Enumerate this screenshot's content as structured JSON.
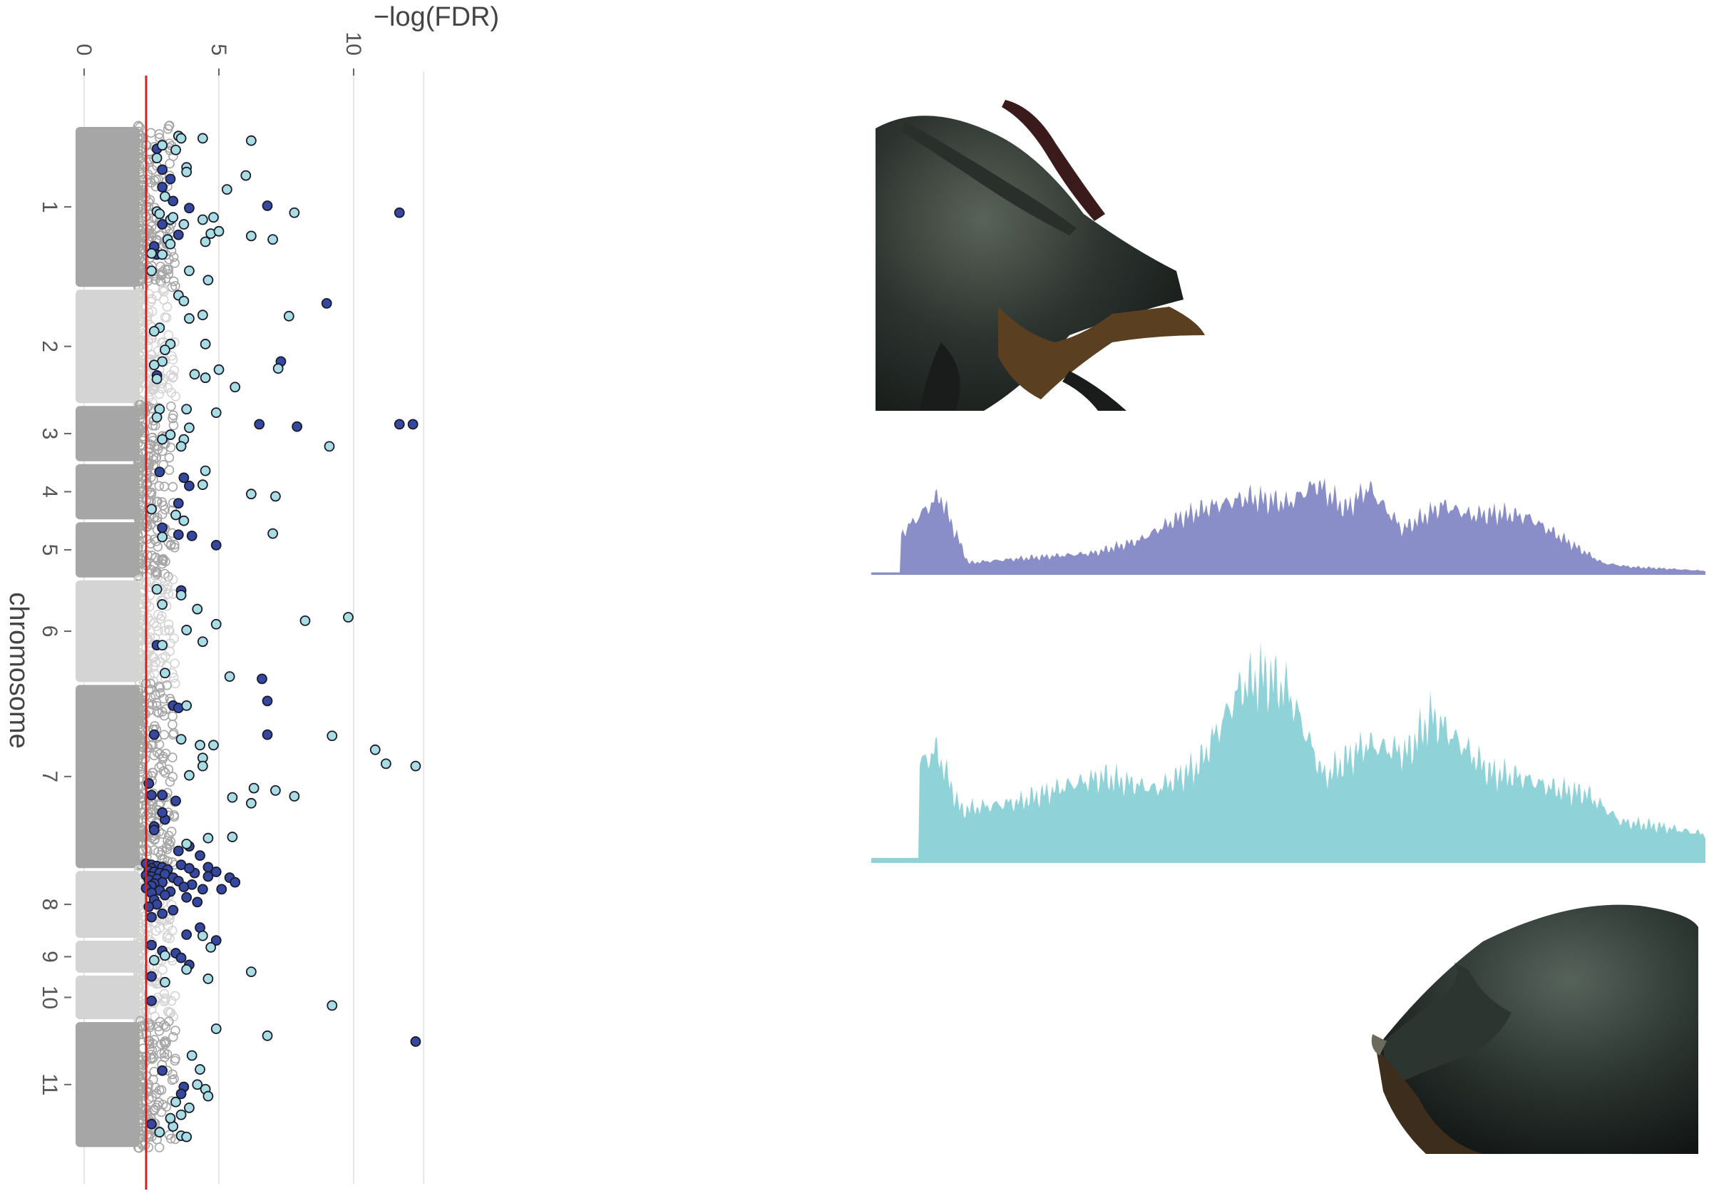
{
  "chart_data": {
    "type": "scatter",
    "orientation": "rotated-90",
    "ylabel": "−log(FDR)",
    "xlabel": "chromosome",
    "ylim": [
      0,
      12.6
    ],
    "yticks": [
      0,
      5,
      10
    ],
    "threshold": 2.3,
    "colors": {
      "threshold": "#d62020",
      "chrom_dark": "#a6a6a6",
      "chrom_light": "#d4d4d4",
      "sig_dark": "#3548a0",
      "sig_light": "#a8dde4",
      "track_top": "#8a8ec8",
      "track_bottom": "#8fd3d9"
    },
    "chromosomes": [
      {
        "label": "1",
        "start": 0,
        "end": 14,
        "shade": "dark"
      },
      {
        "label": "2",
        "start": 14,
        "end": 24,
        "shade": "light"
      },
      {
        "label": "3",
        "start": 24,
        "end": 29,
        "shade": "dark"
      },
      {
        "label": "4",
        "start": 29,
        "end": 34,
        "shade": "dark"
      },
      {
        "label": "5",
        "start": 34,
        "end": 39,
        "shade": "dark"
      },
      {
        "label": "6",
        "start": 39,
        "end": 48,
        "shade": "light"
      },
      {
        "label": "7",
        "start": 48,
        "end": 64,
        "shade": "dark"
      },
      {
        "label": "8",
        "start": 64,
        "end": 70,
        "shade": "light"
      },
      {
        "label": "9",
        "start": 70,
        "end": 73,
        "shade": "light"
      },
      {
        "label": "10",
        "start": 73,
        "end": 77,
        "shade": "light"
      },
      {
        "label": "11",
        "start": 77,
        "end": 88,
        "shade": "dark"
      }
    ],
    "series": [
      {
        "type": "dark",
        "points": [
          [
            7.5,
            11.7
          ],
          [
            15.3,
            9.0
          ],
          [
            25.7,
            11.7
          ],
          [
            25.7,
            12.2
          ],
          [
            6.9,
            6.8
          ],
          [
            20.3,
            7.3
          ],
          [
            25.7,
            6.5
          ],
          [
            25.9,
            7.9
          ],
          [
            47.6,
            6.6
          ],
          [
            49.5,
            6.8
          ],
          [
            52.4,
            6.8
          ],
          [
            5.3,
            2.9
          ],
          [
            6.5,
            3.3
          ],
          [
            7.1,
            3.9
          ],
          [
            9.4,
            3.5
          ],
          [
            10.4,
            2.6
          ],
          [
            11.1,
            2.7
          ],
          [
            2.0,
            2.7
          ],
          [
            3.8,
            2.9
          ],
          [
            4.6,
            3.2
          ],
          [
            8.5,
            2.9
          ],
          [
            21.5,
            2.7
          ],
          [
            29.8,
            2.8
          ],
          [
            30.3,
            3.7
          ],
          [
            31.0,
            3.9
          ],
          [
            32.5,
            3.5
          ],
          [
            34.6,
            2.9
          ],
          [
            35.2,
            3.5
          ],
          [
            35.3,
            4.0
          ],
          [
            36.1,
            4.9
          ],
          [
            40.0,
            3.6
          ],
          [
            44.7,
            2.7
          ],
          [
            49.9,
            3.3
          ],
          [
            50.1,
            3.5
          ],
          [
            52.4,
            2.6
          ],
          [
            57.6,
            2.9
          ],
          [
            58.1,
            3.4
          ],
          [
            59.7,
            3.0
          ],
          [
            60.3,
            2.6
          ],
          [
            62.0,
            3.9
          ],
          [
            62.4,
            3.5
          ],
          [
            62.8,
            4.3
          ],
          [
            56.6,
            2.4
          ],
          [
            57.6,
            2.5
          ],
          [
            59.1,
            2.9
          ],
          [
            60.6,
            2.6
          ],
          [
            63.5,
            2.3
          ],
          [
            63.6,
            2.5
          ],
          [
            63.7,
            2.7
          ],
          [
            63.8,
            2.9
          ],
          [
            63.9,
            2.5
          ],
          [
            64.0,
            3.1
          ],
          [
            64.1,
            2.4
          ],
          [
            64.2,
            2.6
          ],
          [
            64.3,
            2.8
          ],
          [
            64.4,
            3.0
          ],
          [
            64.5,
            2.3
          ],
          [
            64.6,
            2.5
          ],
          [
            64.7,
            3.3
          ],
          [
            64.8,
            2.7
          ],
          [
            64.9,
            2.4
          ],
          [
            65.0,
            3.5
          ],
          [
            65.1,
            2.9
          ],
          [
            65.2,
            2.6
          ],
          [
            65.3,
            4.0
          ],
          [
            65.4,
            2.5
          ],
          [
            65.5,
            3.7
          ],
          [
            65.6,
            2.3
          ],
          [
            65.7,
            4.4
          ],
          [
            65.8,
            2.8
          ],
          [
            65.9,
            3.2
          ],
          [
            66.0,
            2.5
          ],
          [
            66.2,
            3.0
          ],
          [
            66.4,
            3.8
          ],
          [
            66.6,
            2.6
          ],
          [
            66.8,
            4.2
          ],
          [
            67.0,
            2.7
          ],
          [
            67.2,
            2.4
          ],
          [
            67.5,
            3.3
          ],
          [
            67.8,
            2.9
          ],
          [
            68.1,
            2.5
          ],
          [
            63.8,
            4.6
          ],
          [
            64.2,
            4.9
          ],
          [
            64.7,
            5.4
          ],
          [
            65.1,
            5.6
          ],
          [
            65.7,
            5.1
          ],
          [
            64.3,
            4.1
          ],
          [
            64.6,
            4.6
          ],
          [
            63.6,
            3.6
          ],
          [
            63.9,
            3.9
          ],
          [
            69.0,
            4.3
          ],
          [
            69.6,
            3.8
          ],
          [
            70.1,
            4.9
          ],
          [
            70.5,
            2.5
          ],
          [
            71.0,
            2.9
          ],
          [
            71.2,
            3.4
          ],
          [
            71.6,
            3.6
          ],
          [
            72.2,
            3.9
          ],
          [
            73.2,
            2.5
          ],
          [
            75.3,
            2.5
          ],
          [
            78.8,
            12.3
          ],
          [
            81.3,
            2.9
          ],
          [
            82.7,
            3.7
          ],
          [
            83.3,
            3.6
          ],
          [
            85.9,
            2.5
          ]
        ]
      },
      {
        "type": "light",
        "points": [
          [
            1.3,
            6.2
          ],
          [
            1.1,
            4.4
          ],
          [
            2.1,
            3.4
          ],
          [
            0.9,
            3.5
          ],
          [
            1.1,
            3.6
          ],
          [
            1.7,
            2.9
          ],
          [
            2.8,
            2.7
          ],
          [
            3.6,
            3.8
          ],
          [
            4.0,
            3.8
          ],
          [
            4.3,
            6.0
          ],
          [
            5.5,
            5.3
          ],
          [
            6.1,
            3.0
          ],
          [
            7.4,
            2.7
          ],
          [
            7.6,
            2.8
          ],
          [
            8.1,
            3.2
          ],
          [
            8.5,
            3.7
          ],
          [
            8.1,
            4.4
          ],
          [
            7.9,
            4.8
          ],
          [
            7.9,
            3.3
          ],
          [
            7.5,
            7.8
          ],
          [
            9.3,
            4.7
          ],
          [
            9.5,
            6.2
          ],
          [
            9.8,
            7.0
          ],
          [
            9.8,
            3.1
          ],
          [
            10.2,
            3.2
          ],
          [
            9.1,
            5.0
          ],
          [
            10.0,
            4.5
          ],
          [
            11.1,
            2.9
          ],
          [
            11.0,
            2.5
          ],
          [
            12.5,
            2.5
          ],
          [
            12.5,
            3.9
          ],
          [
            13.3,
            4.6
          ],
          [
            14.6,
            3.5
          ],
          [
            15.1,
            3.7
          ],
          [
            16.6,
            3.9
          ],
          [
            16.3,
            4.4
          ],
          [
            16.4,
            7.6
          ],
          [
            17.4,
            2.8
          ],
          [
            17.7,
            2.6
          ],
          [
            18.8,
            4.5
          ],
          [
            18.8,
            3.2
          ],
          [
            19.3,
            3.0
          ],
          [
            20.3,
            2.9
          ],
          [
            20.6,
            2.6
          ],
          [
            20.9,
            7.2
          ],
          [
            21.4,
            4.1
          ],
          [
            21.0,
            5.0
          ],
          [
            21.7,
            4.5
          ],
          [
            21.8,
            2.7
          ],
          [
            22.5,
            5.6
          ],
          [
            24.4,
            3.8
          ],
          [
            24.4,
            2.8
          ],
          [
            24.7,
            4.9
          ],
          [
            25.1,
            2.7
          ],
          [
            26.0,
            3.9
          ],
          [
            26.6,
            3.2
          ],
          [
            27.0,
            2.9
          ],
          [
            27.0,
            3.7
          ],
          [
            27.6,
            9.1
          ],
          [
            27.6,
            3.6
          ],
          [
            29.7,
            4.5
          ],
          [
            30.9,
            4.4
          ],
          [
            31.7,
            6.2
          ],
          [
            31.9,
            7.1
          ],
          [
            33.0,
            2.5
          ],
          [
            33.5,
            3.4
          ],
          [
            35.1,
            7.0
          ],
          [
            34.0,
            3.7
          ],
          [
            35.4,
            2.9
          ],
          [
            39.9,
            2.7
          ],
          [
            40.4,
            3.6
          ],
          [
            41.2,
            2.9
          ],
          [
            41.6,
            4.2
          ],
          [
            42.6,
            8.2
          ],
          [
            42.3,
            9.8
          ],
          [
            42.9,
            4.9
          ],
          [
            43.4,
            3.8
          ],
          [
            44.4,
            4.4
          ],
          [
            44.7,
            2.9
          ],
          [
            47.4,
            5.4
          ],
          [
            47.1,
            3.0
          ],
          [
            49.9,
            3.8
          ],
          [
            52.5,
            9.2
          ],
          [
            52.8,
            3.6
          ],
          [
            53.7,
            10.8
          ],
          [
            53.3,
            4.8
          ],
          [
            53.3,
            4.3
          ],
          [
            54.4,
            4.4
          ],
          [
            55.1,
            12.3
          ],
          [
            54.9,
            11.2
          ],
          [
            55.1,
            4.4
          ],
          [
            55.9,
            3.9
          ],
          [
            57.0,
            6.3
          ],
          [
            57.2,
            7.1
          ],
          [
            57.7,
            7.8
          ],
          [
            57.8,
            5.5
          ],
          [
            58.3,
            6.2
          ],
          [
            61.2,
            5.5
          ],
          [
            61.8,
            3.8
          ],
          [
            61.3,
            4.6
          ],
          [
            69.7,
            4.4
          ],
          [
            70.7,
            4.7
          ],
          [
            71.4,
            3.0
          ],
          [
            71.8,
            2.6
          ],
          [
            72.6,
            3.8
          ],
          [
            72.8,
            6.2
          ],
          [
            73.7,
            3.0
          ],
          [
            73.4,
            4.6
          ],
          [
            75.7,
            9.2
          ],
          [
            77.7,
            4.9
          ],
          [
            78.3,
            6.8
          ],
          [
            80.0,
            4.0
          ],
          [
            81.2,
            4.3
          ],
          [
            82.5,
            4.2
          ],
          [
            82.9,
            4.5
          ],
          [
            83.5,
            4.6
          ],
          [
            84.0,
            3.4
          ],
          [
            84.5,
            3.9
          ],
          [
            85.1,
            3.6
          ],
          [
            86.1,
            3.3
          ],
          [
            86.9,
            3.6
          ],
          [
            87.0,
            3.8
          ],
          [
            85.4,
            3.2
          ],
          [
            86.6,
            2.8
          ]
        ]
      }
    ],
    "tracks": [
      {
        "name": "top",
        "color": "#8a8ec8",
        "peaks": [
          [
            5,
            40
          ],
          [
            12,
            80
          ],
          [
            17,
            12
          ],
          [
            25,
            16
          ],
          [
            39,
            22
          ],
          [
            47,
            35
          ],
          [
            53,
            55
          ],
          [
            59,
            68
          ],
          [
            66,
            78
          ],
          [
            73,
            72
          ],
          [
            78,
            92
          ],
          [
            83,
            66
          ],
          [
            87,
            88
          ],
          [
            93,
            46
          ],
          [
            100,
            70
          ],
          [
            105,
            60
          ],
          [
            110,
            62
          ],
          [
            115,
            58
          ],
          [
            128,
            12
          ],
          [
            133,
            8
          ],
          [
            140,
            6
          ],
          [
            146,
            4
          ]
        ]
      },
      {
        "name": "bottom",
        "color": "#8fd3d9",
        "peaks": [
          [
            8,
            48
          ],
          [
            11,
            55
          ],
          [
            15,
            26
          ],
          [
            25,
            30
          ],
          [
            33,
            38
          ],
          [
            39,
            42
          ],
          [
            48,
            36
          ],
          [
            55,
            48
          ],
          [
            62,
            86
          ],
          [
            66,
            92
          ],
          [
            70,
            84
          ],
          [
            76,
            42
          ],
          [
            83,
            58
          ],
          [
            90,
            54
          ],
          [
            94,
            72
          ],
          [
            99,
            58
          ],
          [
            104,
            44
          ],
          [
            109,
            42
          ],
          [
            115,
            36
          ],
          [
            120,
            34
          ],
          [
            126,
            20
          ],
          [
            132,
            18
          ],
          [
            140,
            14
          ]
        ]
      }
    ]
  }
}
